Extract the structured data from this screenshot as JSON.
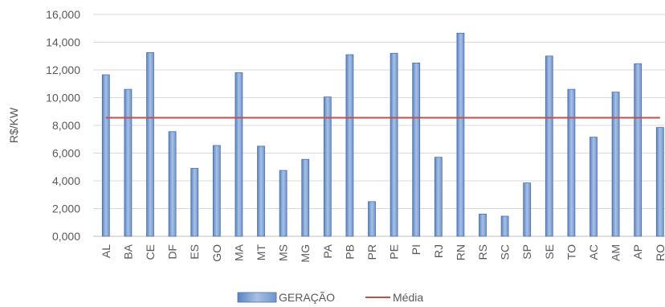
{
  "chart_data": {
    "type": "bar",
    "title": "",
    "xlabel": "",
    "ylabel": "R$/KW",
    "ylim": [
      0,
      16000
    ],
    "yticks": [
      "0,000",
      "2,000",
      "4,000",
      "6,000",
      "8,000",
      "10,000",
      "12,000",
      "14,000",
      "16,000"
    ],
    "grid": true,
    "legend_position": "bottom",
    "categories": [
      "AL",
      "BA",
      "CE",
      "DF",
      "ES",
      "GO",
      "MA",
      "MT",
      "MS",
      "MG",
      "PA",
      "PB",
      "PR",
      "PE",
      "PI",
      "RJ",
      "RN",
      "RS",
      "SC",
      "SP",
      "SE",
      "TO",
      "AC",
      "AM",
      "AP",
      "RO"
    ],
    "series": [
      {
        "name": "GERAÇÃO",
        "type": "bar",
        "color": "#7b9fd0",
        "values": [
          11650,
          10600,
          13250,
          7550,
          4900,
          6550,
          11800,
          6500,
          4750,
          5550,
          10050,
          13100,
          2500,
          13200,
          12500,
          5700,
          14650,
          1600,
          1450,
          3850,
          13000,
          10600,
          7150,
          10400,
          12450,
          7850
        ]
      },
      {
        "name": "Média",
        "type": "line",
        "color": "#c0504d",
        "value": 8550
      }
    ]
  }
}
